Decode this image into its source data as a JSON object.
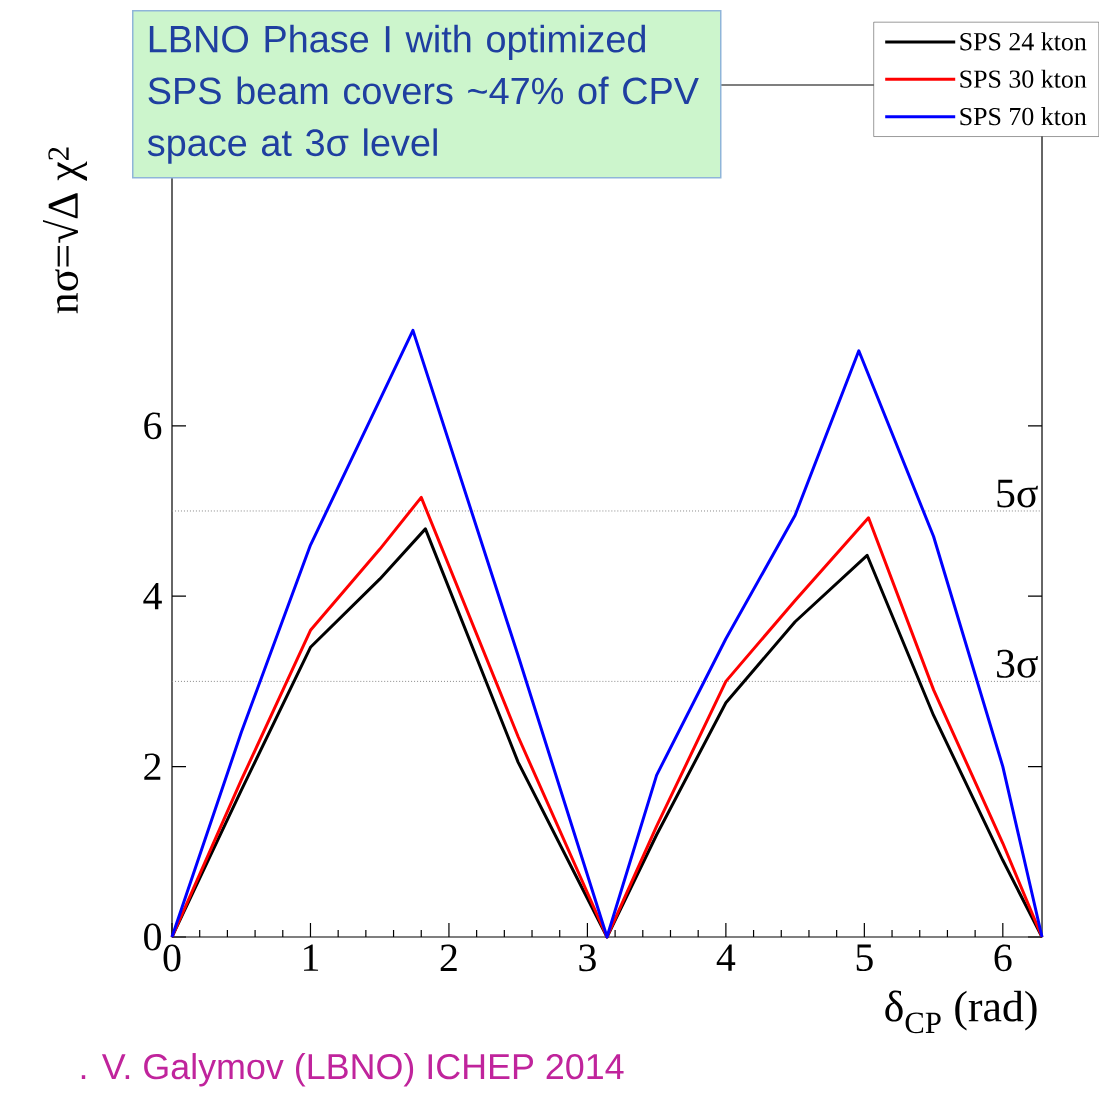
{
  "chart_data": {
    "type": "line",
    "xlabel": "δ$_{CP}$ (rad)",
    "ylabel": "nσ=√Δ χ$^{2}$",
    "xlim": [
      0,
      6.283
    ],
    "ylim": [
      0,
      10
    ],
    "xticks": [
      0,
      1,
      2,
      3,
      4,
      5,
      6
    ],
    "yticks": [
      0,
      2,
      4,
      6
    ],
    "series": [
      {
        "name": "SPS 24 kton",
        "color": "#000000",
        "x": [
          0,
          0.5,
          1,
          1.5,
          1.83,
          2.5,
          3.1416,
          3.5,
          4,
          4.5,
          5.02,
          5.5,
          6,
          6.283
        ],
        "values": [
          0,
          1.72,
          3.4,
          4.2,
          4.79,
          2.05,
          0,
          1.2,
          2.75,
          3.7,
          4.48,
          2.6,
          0.9,
          0
        ]
      },
      {
        "name": "SPS 30 kton",
        "color": "#ff0000",
        "x": [
          0,
          0.5,
          1,
          1.5,
          1.8,
          2.5,
          3.1416,
          3.5,
          4,
          4.5,
          5.03,
          5.5,
          6,
          6.283
        ],
        "values": [
          0,
          1.84,
          3.6,
          4.55,
          5.16,
          2.35,
          0,
          1.3,
          3.0,
          3.95,
          4.92,
          2.9,
          1.1,
          0
        ]
      },
      {
        "name": "SPS 70 kton",
        "color": "#0000ff",
        "x": [
          0,
          0.5,
          1,
          1.5,
          1.74,
          2.5,
          3.1416,
          3.5,
          4,
          4.5,
          4.96,
          5.5,
          6,
          6.283
        ],
        "values": [
          0,
          2.4,
          4.6,
          6.3,
          7.12,
          3.3,
          0,
          1.9,
          3.5,
          4.95,
          6.88,
          4.7,
          2.0,
          0
        ]
      }
    ],
    "ref_lines": [
      {
        "axis": "y",
        "value": 5,
        "label": "5σ",
        "color": "#888888",
        "line_style": "dotted"
      },
      {
        "axis": "y",
        "value": 3,
        "label": "3σ",
        "color": "#888888",
        "line_style": "dotted"
      }
    ],
    "legend": "top right",
    "marker": "none",
    "line_style": "solid",
    "annotations": [
      "LBNO Phase I with optimized SPS beam covers ~47% of CPV space at 3σ level",
      ". V. Galymov (LBNO) ICHEP 2014"
    ]
  }
}
